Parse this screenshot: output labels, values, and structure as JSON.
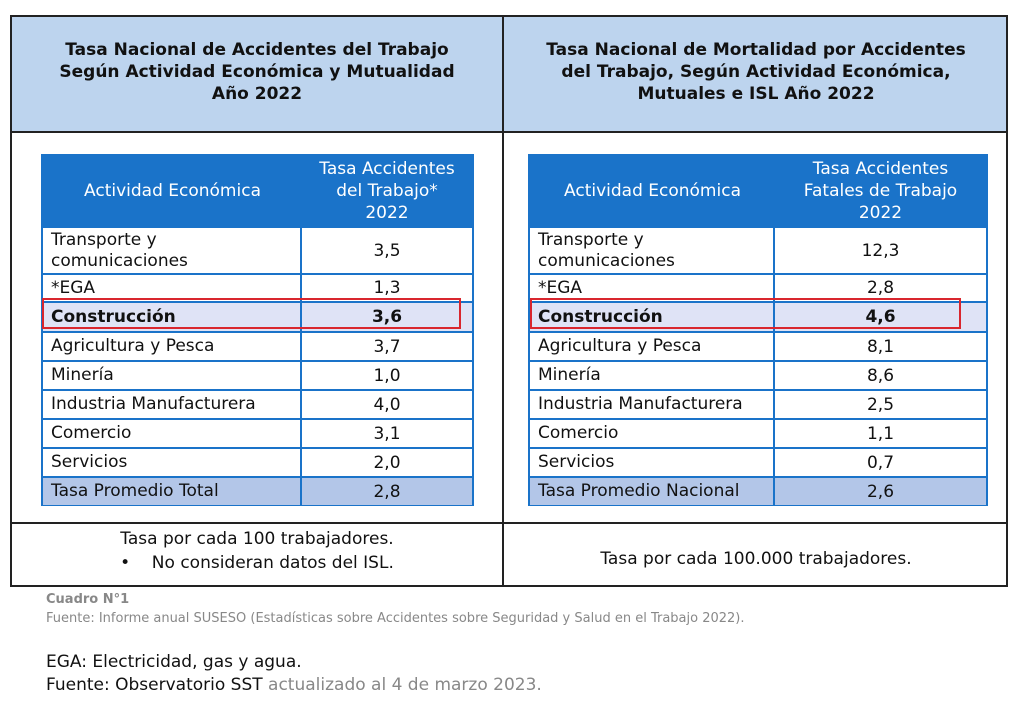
{
  "left": {
    "title": "Tasa Nacional de Accidentes del Trabajo\nSegún Actividad Económica y Mutualidad\nAño 2022",
    "col1": "Actividad Económica",
    "col2": "Tasa Accidentes\ndel Trabajo*\n2022",
    "rows": [
      {
        "activity": "Transporte y\ncomunicaciones",
        "value": "3,5"
      },
      {
        "activity": "*EGA",
        "value": "1,3"
      },
      {
        "activity": "Construcción",
        "value": "3,6"
      },
      {
        "activity": "Agricultura y Pesca",
        "value": "3,7"
      },
      {
        "activity": "Minería",
        "value": "1,0"
      },
      {
        "activity": "Industria Manufacturera",
        "value": "4,0"
      },
      {
        "activity": "Comercio",
        "value": "3,1"
      },
      {
        "activity": "Servicios",
        "value": "2,0"
      },
      {
        "activity": "Tasa Promedio Total",
        "value": "2,8"
      }
    ],
    "note1": "Tasa por cada 100 trabajadores.",
    "note2": "No consideran datos del ISL."
  },
  "right": {
    "title": "Tasa Nacional de Mortalidad por Accidentes\ndel Trabajo, Según Actividad Económica,\nMutuales e ISL Año 2022",
    "col1": "Actividad Económica",
    "col2": "Tasa Accidentes\nFatales de Trabajo\n2022",
    "rows": [
      {
        "activity": "Transporte y\ncomunicaciones",
        "value": "12,3"
      },
      {
        "activity": "*EGA",
        "value": "2,8"
      },
      {
        "activity": "Construcción",
        "value": "4,6"
      },
      {
        "activity": "Agricultura y Pesca",
        "value": "8,1"
      },
      {
        "activity": "Minería",
        "value": "8,6"
      },
      {
        "activity": "Industria Manufacturera",
        "value": "2,5"
      },
      {
        "activity": "Comercio",
        "value": "1,1"
      },
      {
        "activity": "Servicios",
        "value": "0,7"
      },
      {
        "activity": "Tasa Promedio Nacional",
        "value": "2,6"
      }
    ],
    "note1": "Tasa por cada 100.000 trabajadores."
  },
  "caption": {
    "label": "Cuadro N°1",
    "source": "Fuente: Informe anual SUSESO (Estadísticas sobre Accidentes sobre Seguridad y Salud en el Trabajo 2022)."
  },
  "footer": {
    "ega": "EGA: Electricidad, gas y agua.",
    "source_label": "Fuente: Observatorio SST",
    "updated": " actualizado al 4 de marzo 2023."
  },
  "colors": {
    "header_bg": "#bdd4ee",
    "table_blue": "#1a73c9",
    "highlight": "#d9262e",
    "total_bg": "#b3c6e8"
  }
}
